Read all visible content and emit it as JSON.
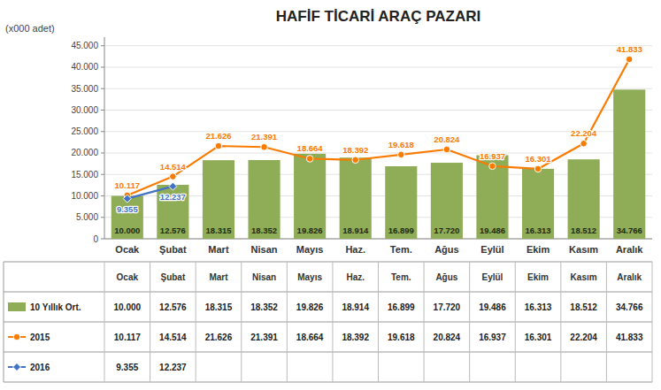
{
  "chart_data": {
    "type": "bar",
    "title": "HAFİF TİCARİ ARAÇ PAZARI",
    "ylabel": "(x000 adet)",
    "categories": [
      "Ocak",
      "Şubat",
      "Mart",
      "Nisan",
      "Mayıs",
      "Haz.",
      "Tem.",
      "Ağus",
      "Eylül",
      "Ekim",
      "Kasım",
      "Aralık"
    ],
    "series": [
      {
        "name": "10 Yıllık Ort.",
        "type": "bar",
        "color": "#8fac57",
        "values": [
          10000,
          12576,
          18315,
          18352,
          19826,
          18914,
          16899,
          17720,
          19486,
          16313,
          18512,
          34766
        ],
        "value_labels": [
          "10.000",
          "12.576",
          "18.315",
          "18.352",
          "19.826",
          "18.914",
          "16.899",
          "17.720",
          "19.486",
          "16.313",
          "18.512",
          "34.766"
        ]
      },
      {
        "name": "2015",
        "type": "line",
        "color": "#f97b00",
        "marker": "circle",
        "values": [
          10117,
          14514,
          21626,
          21391,
          18664,
          18392,
          19618,
          20824,
          16937,
          16301,
          22204,
          41833
        ],
        "value_labels": [
          "10.117",
          "14.514",
          "21.626",
          "21.391",
          "18.664",
          "18.392",
          "19.618",
          "20.824",
          "16.937",
          "16.301",
          "22.204",
          "41.833"
        ]
      },
      {
        "name": "2016",
        "type": "line",
        "color": "#4472c4",
        "marker": "diamond",
        "values": [
          9355,
          12237,
          null,
          null,
          null,
          null,
          null,
          null,
          null,
          null,
          null,
          null
        ],
        "value_labels": [
          "9.355",
          "12.237",
          null,
          null,
          null,
          null,
          null,
          null,
          null,
          null,
          null,
          null
        ]
      }
    ],
    "ylim": [
      0,
      47000
    ],
    "yticks": [
      0,
      {
        "value": 5000,
        "label": "5.000"
      },
      {
        "value": 10000,
        "label": "10.000"
      },
      {
        "value": 15000,
        "label": "15.000"
      },
      {
        "value": 20000,
        "label": "20.000"
      },
      {
        "value": 25000,
        "label": "25.000"
      },
      {
        "value": 30000,
        "label": "30.000"
      },
      {
        "value": 35000,
        "label": "35.000"
      },
      {
        "value": 40000,
        "label": "40.000"
      },
      {
        "value": 45000,
        "label": "45.000"
      }
    ],
    "grid": true,
    "legend": "bottom",
    "data_labels": true
  }
}
